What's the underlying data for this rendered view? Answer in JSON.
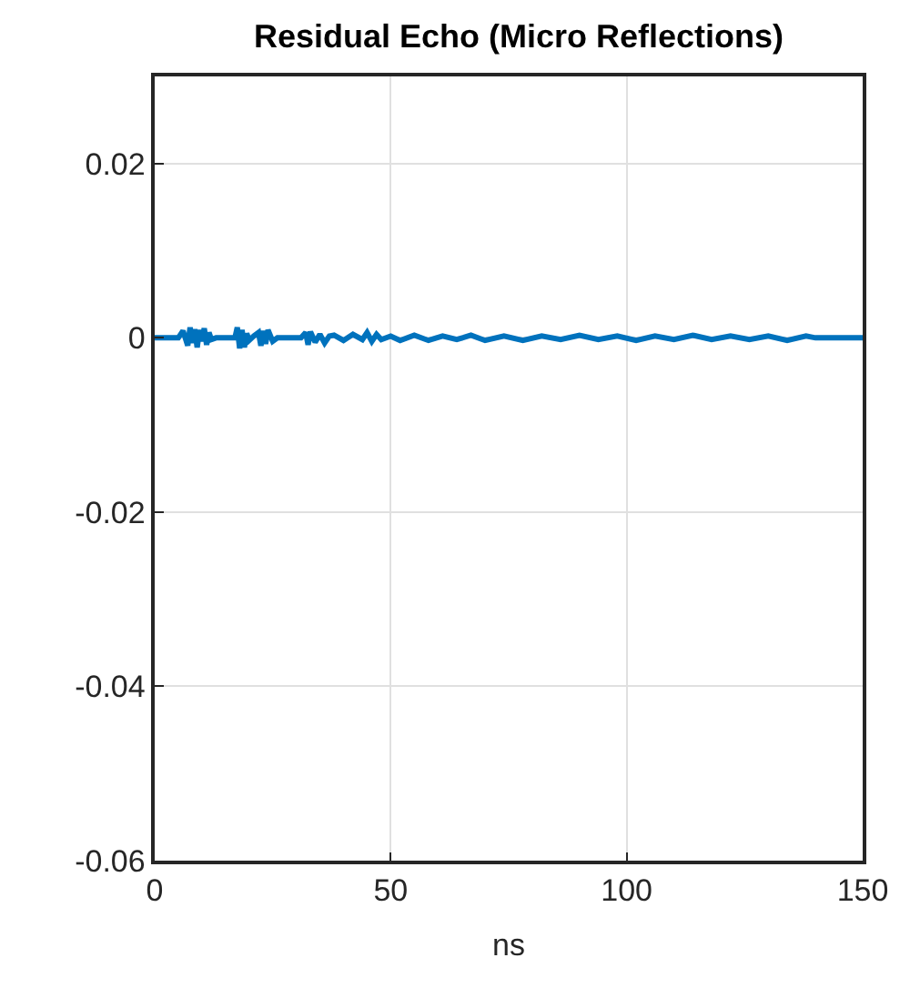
{
  "chart_data": {
    "type": "line",
    "title": "Residual Echo (Micro Reflections)",
    "xlabel": "ns",
    "x": [
      0,
      5,
      6,
      7,
      7.5,
      8,
      8.5,
      9,
      9.5,
      10,
      10.5,
      11,
      11.5,
      12,
      13,
      15,
      17,
      17.5,
      18,
      18.5,
      19,
      19.5,
      20,
      21,
      22,
      22.5,
      23,
      23.5,
      24,
      25,
      26,
      28,
      31,
      32,
      32.5,
      33,
      34,
      35,
      36,
      37,
      38,
      40,
      42,
      44,
      45,
      46,
      47,
      48,
      50,
      52,
      55,
      58,
      61,
      64,
      67,
      70,
      74,
      78,
      82,
      86,
      90,
      94,
      98,
      102,
      106,
      110,
      114,
      118,
      122,
      126,
      130,
      134,
      138,
      140,
      142,
      146,
      150
    ],
    "series": [
      {
        "color": "#0072bd",
        "values": [
          0,
          0,
          0.0008,
          -0.0009,
          0.0012,
          -0.0006,
          0.001,
          -0.0011,
          0.0009,
          -0.0004,
          0.0011,
          -0.0008,
          0.0006,
          -0.0002,
          0,
          0,
          0,
          0.0012,
          -0.0012,
          0.0009,
          -0.0011,
          0.0005,
          -0.0003,
          0.0002,
          0.0006,
          -0.0009,
          0.0008,
          -0.0007,
          0.0009,
          -0.0004,
          0,
          0,
          0,
          0.0006,
          -0.0008,
          0.0007,
          -0.0005,
          0.0004,
          -0.0006,
          0.0002,
          0.0003,
          -0.0003,
          0.0004,
          -0.0002,
          0.0006,
          -0.0004,
          0.0004,
          -0.0002,
          0.0002,
          -0.0003,
          0.0003,
          -0.0003,
          0.0002,
          -0.0002,
          0.0003,
          -0.0003,
          0.0002,
          -0.0003,
          0.0002,
          -0.0002,
          0.0003,
          -0.0002,
          0.0002,
          -0.0003,
          0.0002,
          -0.0002,
          0.0003,
          -0.0002,
          0.0002,
          -0.0002,
          0.0002,
          -0.0003,
          0.0002,
          0,
          0,
          0,
          0
        ]
      }
    ],
    "xlim": [
      0,
      150
    ],
    "xticks": [
      0,
      50,
      100,
      150
    ],
    "ylim": [
      -0.06,
      0.03
    ],
    "yticks": [
      -0.06,
      -0.04,
      -0.02,
      0,
      0.02
    ],
    "grid": true,
    "legend": false,
    "marker": "none",
    "line_style": "solid"
  }
}
